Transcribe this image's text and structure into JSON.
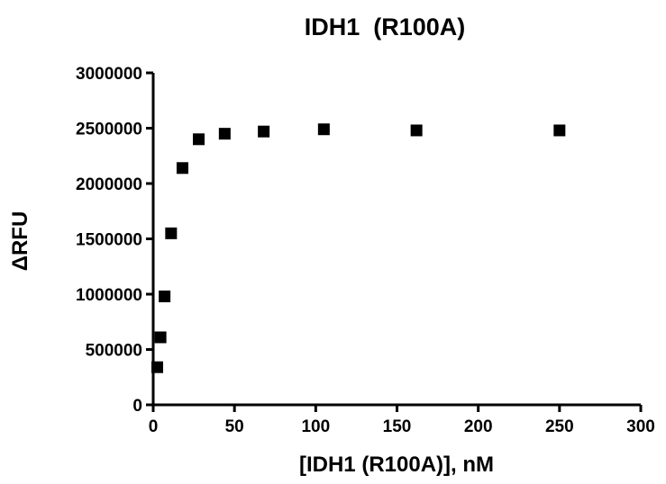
{
  "chart_data": {
    "type": "scatter",
    "title": "IDH1  (R100A)",
    "xlabel": "[IDH1 (R100A)], nM",
    "ylabel": "ΔRFU",
    "xlim": [
      0,
      300
    ],
    "ylim": [
      0,
      3000000
    ],
    "xticks": [
      0,
      50,
      100,
      150,
      200,
      250,
      300
    ],
    "yticks": [
      0,
      500000,
      1000000,
      1500000,
      2000000,
      2500000,
      3000000
    ],
    "grid": false,
    "marker": "square",
    "marker_color": "#000000",
    "series": [
      {
        "points": [
          [
            2.5,
            340000
          ],
          [
            4.5,
            610000
          ],
          [
            7,
            980000
          ],
          [
            11,
            1550000
          ],
          [
            18,
            2140000
          ],
          [
            28,
            2400000
          ],
          [
            44,
            2450000
          ],
          [
            68,
            2470000
          ],
          [
            105,
            2490000
          ],
          [
            162,
            2480000
          ],
          [
            250,
            2480000
          ]
        ]
      }
    ]
  }
}
